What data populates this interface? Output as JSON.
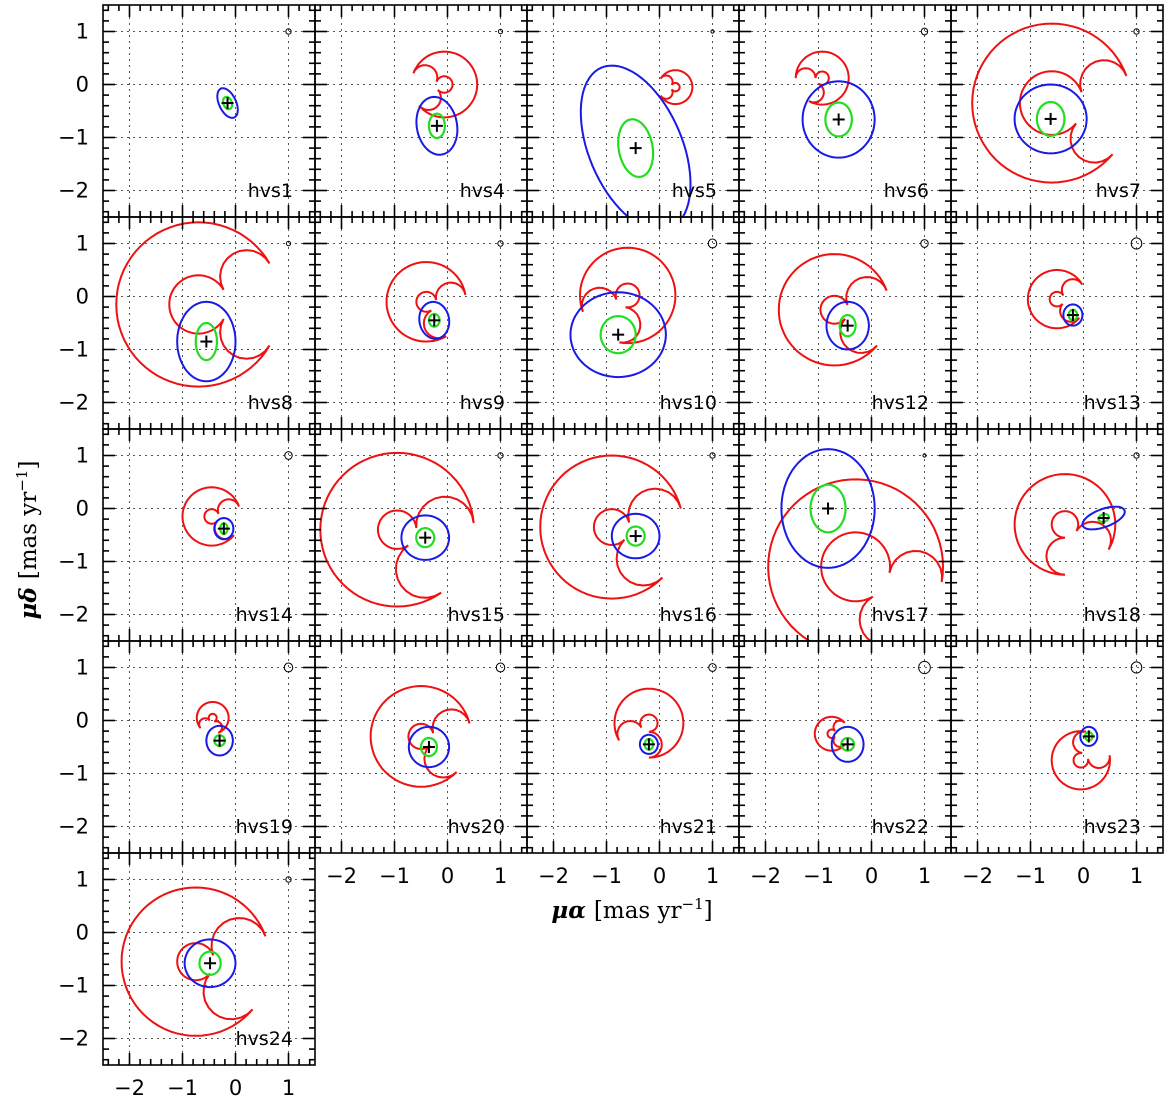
{
  "chart_data": {
    "type": "scatter",
    "grid": true,
    "xlim": [
      -2.5,
      1.5
    ],
    "ylim": [
      -2.5,
      1.5
    ],
    "x_ticks": [
      -2,
      -1,
      0,
      1
    ],
    "y_ticks": [
      -2,
      -1,
      0,
      1
    ],
    "x_tick_labels": [
      "−2",
      "−1",
      "0",
      "1"
    ],
    "y_tick_labels": [
      "−2",
      "−1",
      "0",
      "1"
    ],
    "xlabel": {
      "symbol": "μα",
      "unit": "[mas yr",
      "exp": "−1",
      "close": "]"
    },
    "ylabel": {
      "symbol": "μδ",
      "unit": "[mas yr",
      "exp": "−1",
      "close": "]"
    },
    "colors": {
      "red": "#ee1111",
      "blue": "#1a1ae6",
      "green": "#22dd22",
      "frame": "#000000",
      "grid": "#555555"
    },
    "panels": [
      {
        "label": "hvs1",
        "x": -0.15,
        "y": -0.35,
        "green": {
          "rx": 0.08,
          "ry": 0.12,
          "rot": 20
        },
        "blue": {
          "rx": 0.16,
          "ry": 0.3,
          "rot": 25
        },
        "red": null,
        "eps": 0.05
      },
      {
        "label": "hvs4",
        "x": -0.2,
        "y": -0.78,
        "green": {
          "rx": 0.15,
          "ry": 0.23,
          "rot": 0
        },
        "blue": {
          "rx": 0.38,
          "ry": 0.55,
          "rot": 10
        },
        "red": {
          "cx": -0.06,
          "cy": 0.0,
          "r": 0.62,
          "t0": 160,
          "span": 300,
          "dir": -1,
          "w": 0.42
        },
        "eps": 0.04
      },
      {
        "label": "hvs5",
        "x": -0.45,
        "y": -1.2,
        "green": {
          "rx": 0.32,
          "ry": 0.55,
          "rot": 10
        },
        "blue": {
          "rx": 0.88,
          "ry": 1.65,
          "rot": 23
        },
        "red": {
          "cx": 0.3,
          "cy": -0.05,
          "r": 0.32,
          "t0": 150,
          "span": 300,
          "dir": -1,
          "w": 0.2
        },
        "eps": 0.03
      },
      {
        "label": "hvs6",
        "x": -0.62,
        "y": -0.66,
        "green": {
          "rx": 0.25,
          "ry": 0.32,
          "rot": 0
        },
        "blue": {
          "rx": 0.68,
          "ry": 0.72,
          "rot": 0
        },
        "red": {
          "cx": -0.93,
          "cy": 0.12,
          "r": 0.5,
          "t0": 180,
          "span": 300,
          "dir": -1,
          "w": 0.35
        },
        "eps": 0.06
      },
      {
        "label": "hvs7",
        "x": -0.62,
        "y": -0.65,
        "green": {
          "rx": 0.26,
          "ry": 0.32,
          "rot": 0
        },
        "blue": {
          "rx": 0.68,
          "ry": 0.65,
          "rot": 0
        },
        "red": {
          "cx": -0.6,
          "cy": -0.35,
          "r": 1.5,
          "t0": 20,
          "span": 300,
          "dir": 1,
          "w": 0.45
        },
        "eps": 0.05
      },
      {
        "label": "hvs8",
        "x": -0.55,
        "y": -0.85,
        "green": {
          "rx": 0.2,
          "ry": 0.35,
          "rot": 0
        },
        "blue": {
          "rx": 0.55,
          "ry": 0.75,
          "rot": 0
        },
        "red": {
          "cx": -0.7,
          "cy": -0.15,
          "r": 1.55,
          "t0": 30,
          "span": 300,
          "dir": 1,
          "w": 0.5
        },
        "eps": 0.04
      },
      {
        "label": "hvs9",
        "x": -0.25,
        "y": -0.45,
        "green": {
          "rx": 0.1,
          "ry": 0.12,
          "rot": 0
        },
        "blue": {
          "rx": 0.28,
          "ry": 0.35,
          "rot": 10
        },
        "red": {
          "cx": -0.4,
          "cy": -0.1,
          "r": 0.75,
          "t0": 10,
          "span": 290,
          "dir": 1,
          "w": 0.35
        },
        "eps": 0.05
      },
      {
        "label": "hvs10",
        "x": -0.78,
        "y": -0.72,
        "green": {
          "rx": 0.33,
          "ry": 0.35,
          "rot": 0
        },
        "blue": {
          "rx": 0.9,
          "ry": 0.8,
          "rot": 0
        },
        "red": {
          "cx": -0.6,
          "cy": 0.02,
          "r": 0.9,
          "t0": 200,
          "span": 300,
          "dir": -1,
          "w": 0.5
        },
        "eps": 0.08
      },
      {
        "label": "hvs12",
        "x": -0.45,
        "y": -0.55,
        "green": {
          "rx": 0.15,
          "ry": 0.2,
          "rot": 0
        },
        "blue": {
          "rx": 0.4,
          "ry": 0.45,
          "rot": 0
        },
        "red": {
          "cx": -0.7,
          "cy": -0.25,
          "r": 1.05,
          "t0": 20,
          "span": 300,
          "dir": 1,
          "w": 0.4
        },
        "eps": 0.07
      },
      {
        "label": "hvs13",
        "x": -0.2,
        "y": -0.35,
        "green": {
          "rx": 0.08,
          "ry": 0.1,
          "rot": 0
        },
        "blue": {
          "rx": 0.18,
          "ry": 0.2,
          "rot": 0
        },
        "red": {
          "cx": -0.5,
          "cy": -0.05,
          "r": 0.55,
          "t0": 30,
          "span": 290,
          "dir": 1,
          "w": 0.25
        },
        "eps": 0.1
      },
      {
        "label": "hvs14",
        "x": -0.22,
        "y": -0.38,
        "green": {
          "rx": 0.07,
          "ry": 0.1,
          "rot": 0
        },
        "blue": {
          "rx": 0.18,
          "ry": 0.2,
          "rot": 0
        },
        "red": {
          "cx": -0.45,
          "cy": -0.15,
          "r": 0.55,
          "t0": 20,
          "span": 300,
          "dir": 1,
          "w": 0.28
        },
        "eps": 0.07
      },
      {
        "label": "hvs15",
        "x": -0.42,
        "y": -0.55,
        "green": {
          "rx": 0.17,
          "ry": 0.18,
          "rot": 0
        },
        "blue": {
          "rx": 0.45,
          "ry": 0.42,
          "rot": 0
        },
        "red": {
          "cx": -0.95,
          "cy": -0.4,
          "r": 1.45,
          "t0": 5,
          "span": 300,
          "dir": 1,
          "w": 0.55
        },
        "eps": 0.05
      },
      {
        "label": "hvs16",
        "x": -0.45,
        "y": -0.52,
        "green": {
          "rx": 0.17,
          "ry": 0.18,
          "rot": 0
        },
        "blue": {
          "rx": 0.45,
          "ry": 0.42,
          "rot": 0
        },
        "red": {
          "cx": -0.9,
          "cy": -0.35,
          "r": 1.35,
          "t0": 15,
          "span": 300,
          "dir": 1,
          "w": 0.55
        },
        "eps": 0.05
      },
      {
        "label": "hvs17",
        "x": -0.82,
        "y": 0.0,
        "green": {
          "rx": 0.33,
          "ry": 0.45,
          "rot": 0
        },
        "blue": {
          "rx": 0.88,
          "ry": 1.12,
          "rot": 0
        },
        "red": {
          "cx": -0.3,
          "cy": -1.1,
          "r": 1.65,
          "t0": 300,
          "span": 310,
          "dir": -1,
          "w": 0.5
        },
        "eps": 0.03
      },
      {
        "label": "hvs18",
        "x": 0.38,
        "y": -0.18,
        "green": {
          "rx": 0.1,
          "ry": 0.07,
          "rot": 20
        },
        "blue": {
          "rx": 0.42,
          "ry": 0.17,
          "rot": 20
        },
        "red": {
          "cx": -0.35,
          "cy": -0.3,
          "r": 0.95,
          "t0": 330,
          "span": 300,
          "dir": 1,
          "w": 0.35
        },
        "eps": 0.05
      },
      {
        "label": "hvs19",
        "x": -0.3,
        "y": -0.38,
        "green": {
          "rx": 0.1,
          "ry": 0.1,
          "rot": 0
        },
        "blue": {
          "rx": 0.25,
          "ry": 0.28,
          "rot": 0
        },
        "red": {
          "cx": -0.43,
          "cy": 0.05,
          "r": 0.3,
          "t0": 220,
          "span": 290,
          "dir": -1,
          "w": 0.15
        },
        "eps": 0.08
      },
      {
        "label": "hvs20",
        "x": -0.35,
        "y": -0.5,
        "green": {
          "rx": 0.15,
          "ry": 0.17,
          "rot": 0
        },
        "blue": {
          "rx": 0.38,
          "ry": 0.38,
          "rot": 0
        },
        "red": {
          "cx": -0.5,
          "cy": -0.3,
          "r": 0.95,
          "t0": 15,
          "span": 300,
          "dir": 1,
          "w": 0.4
        },
        "eps": 0.08
      },
      {
        "label": "hvs21",
        "x": -0.2,
        "y": -0.45,
        "green": {
          "rx": 0.08,
          "ry": 0.1,
          "rot": 0
        },
        "blue": {
          "rx": 0.17,
          "ry": 0.18,
          "rot": 0
        },
        "red": {
          "cx": -0.2,
          "cy": -0.05,
          "r": 0.65,
          "t0": 210,
          "span": 300,
          "dir": -1,
          "w": 0.3
        },
        "eps": 0.07
      },
      {
        "label": "hvs22",
        "x": -0.45,
        "y": -0.45,
        "green": {
          "rx": 0.12,
          "ry": 0.12,
          "rot": 0
        },
        "blue": {
          "rx": 0.3,
          "ry": 0.33,
          "rot": 0
        },
        "red": {
          "cx": -0.75,
          "cy": -0.25,
          "r": 0.32,
          "t0": 40,
          "span": 280,
          "dir": 1,
          "w": 0.15
        },
        "eps": 0.11
      },
      {
        "label": "hvs23",
        "x": 0.1,
        "y": -0.3,
        "green": {
          "rx": 0.07,
          "ry": 0.08,
          "rot": 0
        },
        "blue": {
          "rx": 0.16,
          "ry": 0.18,
          "rot": 0
        },
        "red": {
          "cx": -0.05,
          "cy": -0.75,
          "r": 0.55,
          "t0": 80,
          "span": 290,
          "dir": 1,
          "w": 0.25
        },
        "eps": 0.1
      },
      {
        "label": "hvs24",
        "x": -0.48,
        "y": -0.58,
        "green": {
          "rx": 0.2,
          "ry": 0.22,
          "rot": 0
        },
        "blue": {
          "rx": 0.48,
          "ry": 0.45,
          "rot": 0
        },
        "red": {
          "cx": -0.75,
          "cy": -0.55,
          "r": 1.4,
          "t0": 20,
          "span": 300,
          "dir": 1,
          "w": 0.55
        },
        "eps": 0.05
      }
    ]
  }
}
